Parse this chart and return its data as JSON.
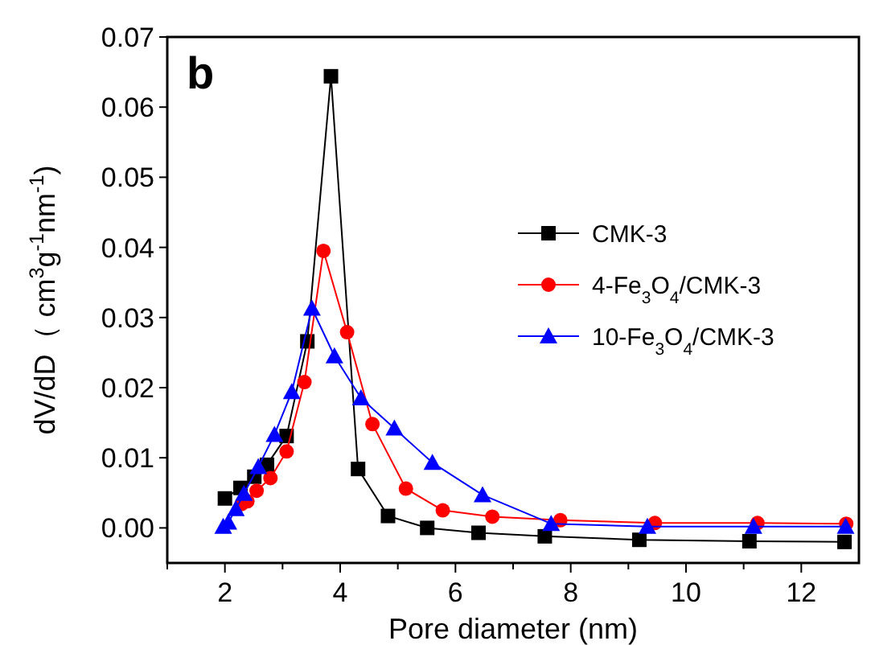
{
  "chart_data": {
    "type": "line",
    "xlabel": "Pore diameter (nm)",
    "ylabel": "dV/dD（ cm$^{3}$g$^{-1}$nm$^{-1}$)",
    "annotations": [
      "b"
    ],
    "xlim": [
      1,
      13
    ],
    "xticks": [
      {
        "value": 1,
        "label": null
      },
      2,
      {
        "value": 3,
        "label": null
      },
      4,
      {
        "value": 5,
        "label": null
      },
      6,
      {
        "value": 7,
        "label": null
      },
      8,
      {
        "value": 9,
        "label": null
      },
      10,
      {
        "value": 11,
        "label": null
      },
      12
    ],
    "ylim": [
      -0.005,
      0.07
    ],
    "yticks": [
      {
        "value": 0,
        "label": "0.00"
      },
      {
        "value": 0.01,
        "label": "0.01"
      },
      {
        "value": 0.02,
        "label": "0.02"
      },
      {
        "value": 0.03,
        "label": "0.03"
      },
      {
        "value": 0.04,
        "label": "0.04"
      },
      {
        "value": 0.05,
        "label": "0.05"
      },
      {
        "value": 0.06,
        "label": "0.06"
      },
      {
        "value": 0.07,
        "label": "0.07"
      }
    ],
    "grid": false,
    "legend": "right",
    "line_style": "solid",
    "series": [
      {
        "name": "CMK-3",
        "color": "#000000",
        "marker": "square",
        "x": [
          2.0,
          2.27,
          2.51,
          2.73,
          3.07,
          3.43,
          3.84,
          4.31,
          4.83,
          5.51,
          6.4,
          7.55,
          9.19,
          11.1,
          12.75
        ],
        "values": [
          0.0042,
          0.0057,
          0.0073,
          0.009,
          0.0131,
          0.0266,
          0.0644,
          0.0084,
          0.0017,
          0.0,
          -0.0007,
          -0.0012,
          -0.0017,
          -0.0019,
          -0.002
        ]
      },
      {
        "name": "4-Fe$_{3}$O$_{4}$/CMK-3",
        "color": "#ff0000",
        "marker": "circle",
        "x": [
          2.29,
          2.39,
          2.55,
          2.79,
          3.07,
          3.38,
          3.71,
          4.12,
          4.56,
          5.14,
          5.78,
          6.64,
          7.82,
          9.46,
          11.24,
          12.78
        ],
        "values": [
          0.0034,
          0.0038,
          0.0053,
          0.0071,
          0.0109,
          0.0208,
          0.0395,
          0.0279,
          0.0148,
          0.0056,
          0.0025,
          0.0016,
          0.0011,
          0.0007,
          0.0007,
          0.0006
        ]
      },
      {
        "name": "10-Fe$_{3}$O$_{4}$/CMK-3",
        "color": "#0000ff",
        "marker": "triangle",
        "x": [
          1.97,
          2.06,
          2.19,
          2.33,
          2.58,
          2.86,
          3.16,
          3.51,
          3.9,
          4.36,
          4.94,
          5.6,
          6.47,
          7.66,
          9.33,
          11.17,
          12.77
        ],
        "values": [
          0.0002,
          0.0008,
          0.0027,
          0.0049,
          0.0087,
          0.0133,
          0.0194,
          0.0313,
          0.0245,
          0.0185,
          0.0142,
          0.0093,
          0.0047,
          0.0006,
          0.0002,
          0.0002,
          0.0002
        ]
      }
    ]
  }
}
